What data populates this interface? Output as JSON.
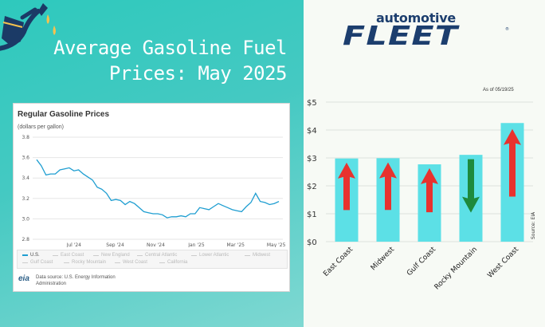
{
  "headline": {
    "line1": "Average Gasoline Fuel",
    "line2": "Prices: May 2025"
  },
  "colors": {
    "teal_bg": "#3fc9c0",
    "eia_line": "#1f9ed1",
    "bar_fill": "#5ce0e6",
    "arrow_up": "#e8322e",
    "arrow_down": "#1e8a3c",
    "brand_navy": "#1c3e6e"
  },
  "eia_card": {
    "title": "Regular Gasoline Prices",
    "subtitle": "(dollars per gallon)",
    "legend": [
      "U.S.",
      "East Coast",
      "New England",
      "Central Atlantic",
      "Lower Atlantic",
      "Midwest",
      "Gulf Coast",
      "Rocky Mountain",
      "West Coast",
      "California"
    ],
    "logo_text": "eia",
    "source_line1": "Data source: U.S. Energy Information",
    "source_line2": "Administration"
  },
  "brand": {
    "top": "automotive",
    "main": "FLEET",
    "reg": "®"
  },
  "asof": "As of 05/19/25",
  "chart_data": [
    {
      "type": "line",
      "title": "Regular Gasoline Prices",
      "ylabel": "(dollars per gallon)",
      "ylim": [
        2.8,
        3.8
      ],
      "yticks": [
        2.8,
        3.0,
        3.2,
        3.4,
        3.6,
        3.8
      ],
      "xtick_labels": [
        "Jul '24",
        "Sep '24",
        "Nov '24",
        "Jan '25",
        "Mar '25",
        "May '25"
      ],
      "grid": true,
      "series": [
        {
          "name": "U.S.",
          "x": [
            "2024-05-20",
            "2024-05-27",
            "2024-06-03",
            "2024-06-10",
            "2024-06-17",
            "2024-06-24",
            "2024-07-01",
            "2024-07-08",
            "2024-07-15",
            "2024-07-22",
            "2024-07-29",
            "2024-08-05",
            "2024-08-12",
            "2024-08-19",
            "2024-08-26",
            "2024-09-02",
            "2024-09-09",
            "2024-09-16",
            "2024-09-23",
            "2024-09-30",
            "2024-10-07",
            "2024-10-14",
            "2024-10-21",
            "2024-10-28",
            "2024-11-04",
            "2024-11-11",
            "2024-11-18",
            "2024-11-25",
            "2024-12-02",
            "2024-12-09",
            "2024-12-16",
            "2024-12-23",
            "2024-12-30",
            "2025-01-06",
            "2025-01-13",
            "2025-01-20",
            "2025-01-27",
            "2025-02-03",
            "2025-02-10",
            "2025-02-17",
            "2025-02-24",
            "2025-03-03",
            "2025-03-10",
            "2025-03-17",
            "2025-03-24",
            "2025-03-31",
            "2025-04-07",
            "2025-04-14",
            "2025-04-21",
            "2025-04-28",
            "2025-05-05",
            "2025-05-12",
            "2025-05-19"
          ],
          "values": [
            3.58,
            3.52,
            3.43,
            3.44,
            3.44,
            3.48,
            3.49,
            3.5,
            3.47,
            3.48,
            3.44,
            3.41,
            3.38,
            3.31,
            3.29,
            3.25,
            3.18,
            3.19,
            3.18,
            3.14,
            3.17,
            3.15,
            3.11,
            3.07,
            3.06,
            3.05,
            3.05,
            3.04,
            3.01,
            3.02,
            3.02,
            3.03,
            3.02,
            3.05,
            3.05,
            3.11,
            3.1,
            3.09,
            3.12,
            3.15,
            3.13,
            3.11,
            3.09,
            3.08,
            3.07,
            3.12,
            3.16,
            3.25,
            3.17,
            3.16,
            3.14,
            3.15,
            3.17
          ]
        }
      ]
    },
    {
      "type": "bar",
      "categories": [
        "East Coast",
        "Midwest",
        "Gulf Coast",
        "Rocky Mountain",
        "West Coast"
      ],
      "values": [
        2.98,
        2.99,
        2.77,
        3.11,
        4.25
      ],
      "trend": [
        "up",
        "up",
        "up",
        "down",
        "up"
      ],
      "ylim": [
        0,
        5
      ],
      "yticks": [
        "$0",
        "$1",
        "$2",
        "$3",
        "$4",
        "$5"
      ],
      "grid": true,
      "annotation": "As of 05/19/25",
      "source": "Source: EIA"
    }
  ]
}
